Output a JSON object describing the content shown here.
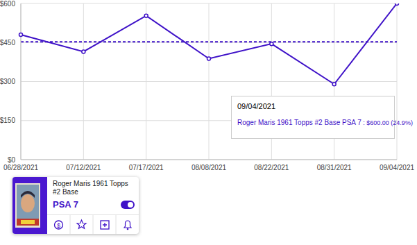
{
  "chart_data": {
    "type": "line",
    "categories": [
      "06/28/2021",
      "07/12/2021",
      "07/17/2021",
      "08/08/2021",
      "08/22/2021",
      "08/31/2021",
      "09/04/2021"
    ],
    "series": [
      {
        "name": "Roger Maris 1961 Topps #2 Base PSA 7",
        "color": "#3f12c8",
        "values": [
          480,
          415,
          553,
          388,
          445,
          290,
          600
        ],
        "marker": "circle"
      }
    ],
    "reference_line": 453,
    "ylim": [
      0,
      600
    ],
    "yticks": [
      {
        "value": 0,
        "label": "$0"
      },
      {
        "value": 150,
        "label": "$150"
      },
      {
        "value": 300,
        "label": "$300"
      },
      {
        "value": 450,
        "label": "$450"
      },
      {
        "value": 600,
        "label": "$600"
      }
    ],
    "grid": true,
    "annotation": {
      "x": "09/04/2021",
      "label": " : $600.00 (24.9%)"
    }
  },
  "card": {
    "title": "Roger Maris 1961 Topps #2 Base",
    "grade": "PSA 7",
    "price_icon": "$"
  }
}
